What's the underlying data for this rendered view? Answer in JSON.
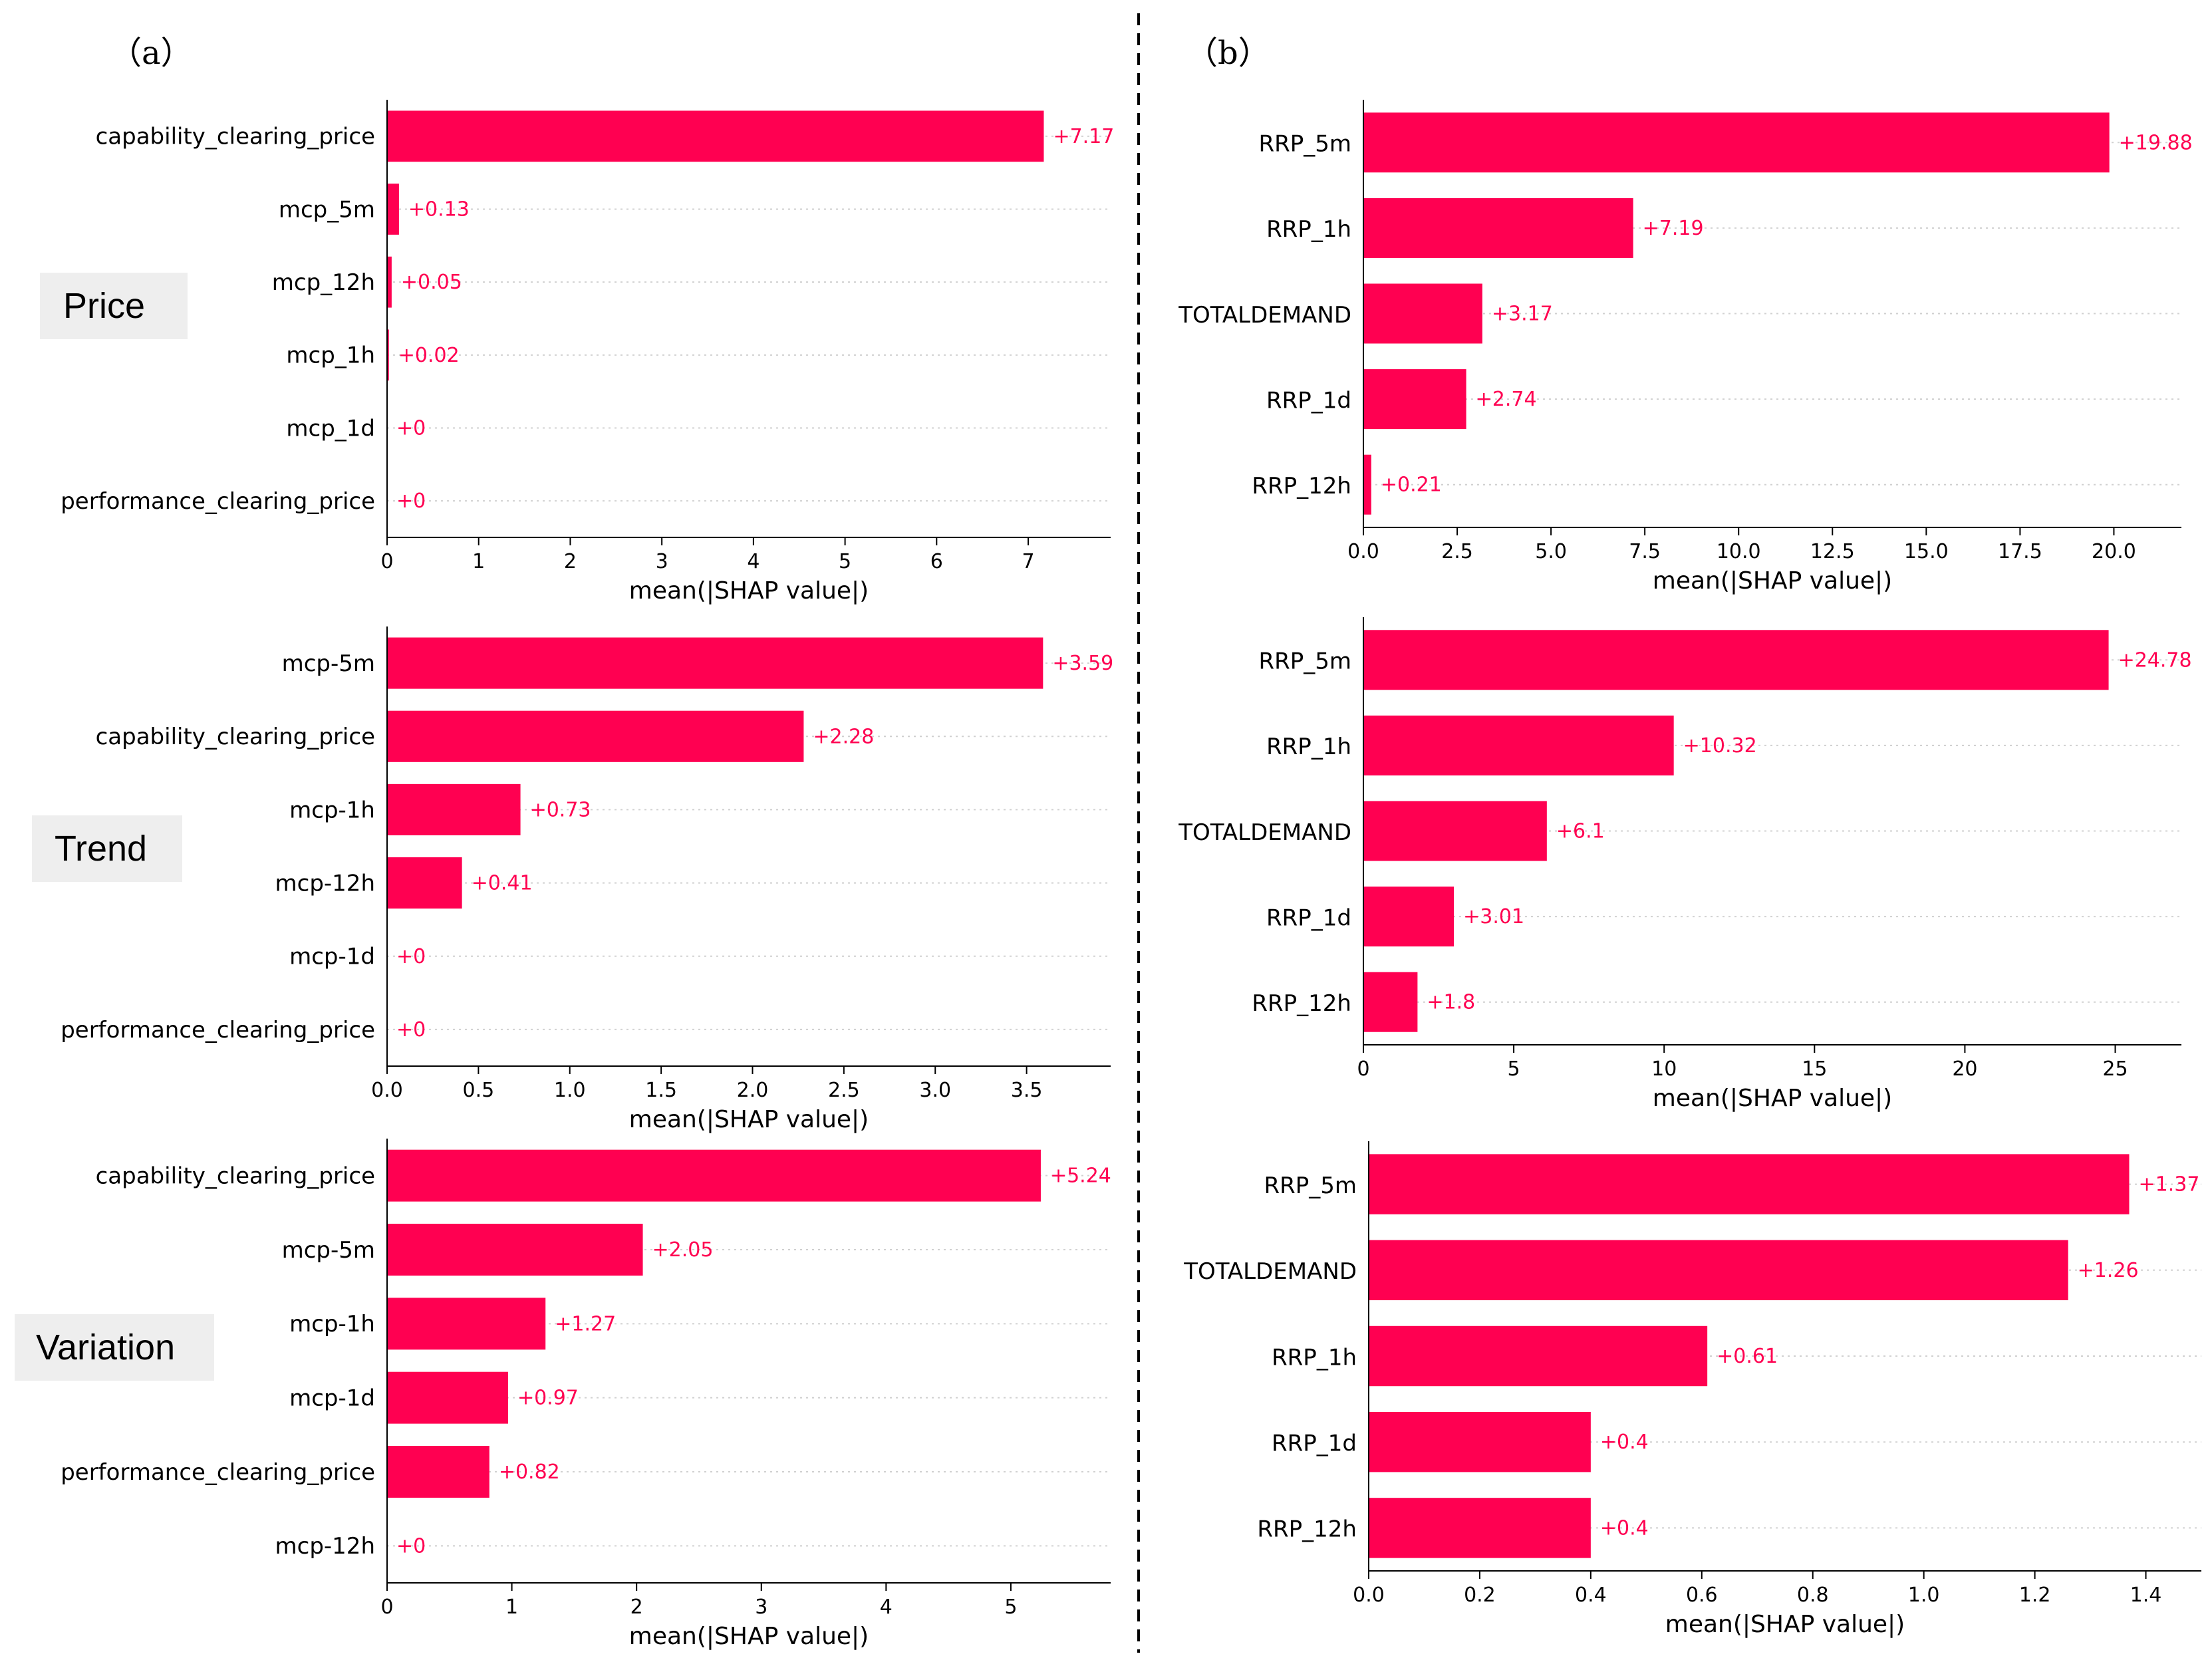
{
  "colors": {
    "bar": "#FF0051",
    "grid": "#d0d0d0",
    "axis": "#000000",
    "tag_bg": "#eeeeee"
  },
  "panels": {
    "a": "（a）",
    "b": "（b）"
  },
  "row_tags": [
    "Price",
    "Trend",
    "Variation"
  ],
  "chart_data": [
    {
      "id": "a-price",
      "type": "bar",
      "orientation": "horizontal",
      "categories": [
        "capability_clearing_price",
        "mcp_5m",
        "mcp_12h",
        "mcp_1h",
        "mcp_1d",
        "performance_clearing_price"
      ],
      "values": [
        7.17,
        0.13,
        0.05,
        0.02,
        0,
        0
      ],
      "value_labels": [
        "+7.17",
        "+0.13",
        "+0.05",
        "+0.02",
        "+0",
        "+0"
      ],
      "xticks": [
        0,
        1,
        2,
        3,
        4,
        5,
        6,
        7
      ],
      "xtick_labels": [
        "0",
        "1",
        "2",
        "3",
        "4",
        "5",
        "6",
        "7"
      ],
      "xlim": [
        0,
        7.9
      ],
      "xlabel": "mean(|SHAP value|)",
      "ylabel": "",
      "title": ""
    },
    {
      "id": "a-trend",
      "type": "bar",
      "orientation": "horizontal",
      "categories": [
        "mcp-5m",
        "capability_clearing_price",
        "mcp-1h",
        "mcp-12h",
        "mcp-1d",
        "performance_clearing_price"
      ],
      "values": [
        3.59,
        2.28,
        0.73,
        0.41,
        0,
        0
      ],
      "value_labels": [
        "+3.59",
        "+2.28",
        "+0.73",
        "+0.41",
        "+0",
        "+0"
      ],
      "xticks": [
        0,
        0.5,
        1,
        1.5,
        2,
        2.5,
        3,
        3.5
      ],
      "xtick_labels": [
        "0.0",
        "0.5",
        "1.0",
        "1.5",
        "2.0",
        "2.5",
        "3.0",
        "3.5"
      ],
      "xlim": [
        0,
        3.96
      ],
      "xlabel": "mean(|SHAP value|)",
      "ylabel": "",
      "title": ""
    },
    {
      "id": "a-variation",
      "type": "bar",
      "orientation": "horizontal",
      "categories": [
        "capability_clearing_price",
        "mcp-5m",
        "mcp-1h",
        "mcp-1d",
        "performance_clearing_price",
        "mcp-12h"
      ],
      "values": [
        5.24,
        2.05,
        1.27,
        0.97,
        0.82,
        0
      ],
      "value_labels": [
        "+5.24",
        "+2.05",
        "+1.27",
        "+0.97",
        "+0.82",
        "+0"
      ],
      "xticks": [
        0,
        1,
        2,
        3,
        4,
        5
      ],
      "xtick_labels": [
        "0",
        "1",
        "2",
        "3",
        "4",
        "5"
      ],
      "xlim": [
        0,
        5.8
      ],
      "xlabel": "mean(|SHAP value|)",
      "ylabel": "",
      "title": ""
    },
    {
      "id": "b-price",
      "type": "bar",
      "orientation": "horizontal",
      "categories": [
        "RRP_5m",
        "RRP_1h",
        "TOTALDEMAND",
        "RRP_1d",
        "RRP_12h"
      ],
      "values": [
        19.88,
        7.19,
        3.17,
        2.74,
        0.21
      ],
      "value_labels": [
        "+19.88",
        "+7.19",
        "+3.17",
        "+2.74",
        "+0.21"
      ],
      "xticks": [
        0,
        2.5,
        5,
        7.5,
        10,
        12.5,
        15,
        17.5,
        20
      ],
      "xtick_labels": [
        "0.0",
        "2.5",
        "5.0",
        "7.5",
        "10.0",
        "12.5",
        "15.0",
        "17.5",
        "20.0"
      ],
      "xlim": [
        0,
        21.8
      ],
      "xlabel": "mean(|SHAP value|)",
      "ylabel": "",
      "title": ""
    },
    {
      "id": "b-trend",
      "type": "bar",
      "orientation": "horizontal",
      "categories": [
        "RRP_5m",
        "RRP_1h",
        "TOTALDEMAND",
        "RRP_1d",
        "RRP_12h"
      ],
      "values": [
        24.78,
        10.32,
        6.1,
        3.01,
        1.8
      ],
      "value_labels": [
        "+24.78",
        "+10.32",
        "+6.1",
        "+3.01",
        "+1.8"
      ],
      "xticks": [
        0,
        5,
        10,
        15,
        20,
        25
      ],
      "xtick_labels": [
        "0",
        "5",
        "10",
        "15",
        "20",
        "25"
      ],
      "xlim": [
        0,
        27.2
      ],
      "xlabel": "mean(|SHAP value|)",
      "ylabel": "",
      "title": ""
    },
    {
      "id": "b-variation",
      "type": "bar",
      "orientation": "horizontal",
      "categories": [
        "RRP_5m",
        "TOTALDEMAND",
        "RRP_1h",
        "RRP_1d",
        "RRP_12h"
      ],
      "values": [
        1.37,
        1.26,
        0.61,
        0.4,
        0.4
      ],
      "value_labels": [
        "+1.37",
        "+1.26",
        "+0.61",
        "+0.4",
        "+0.4"
      ],
      "xticks": [
        0,
        0.2,
        0.4,
        0.6,
        0.8,
        1.0,
        1.2,
        1.4
      ],
      "xtick_labels": [
        "0.0",
        "0.2",
        "0.4",
        "0.6",
        "0.8",
        "1.0",
        "1.2",
        "1.4"
      ],
      "xlim": [
        0,
        1.5
      ],
      "xlabel": "mean(|SHAP value|)",
      "ylabel": "",
      "title": ""
    }
  ]
}
